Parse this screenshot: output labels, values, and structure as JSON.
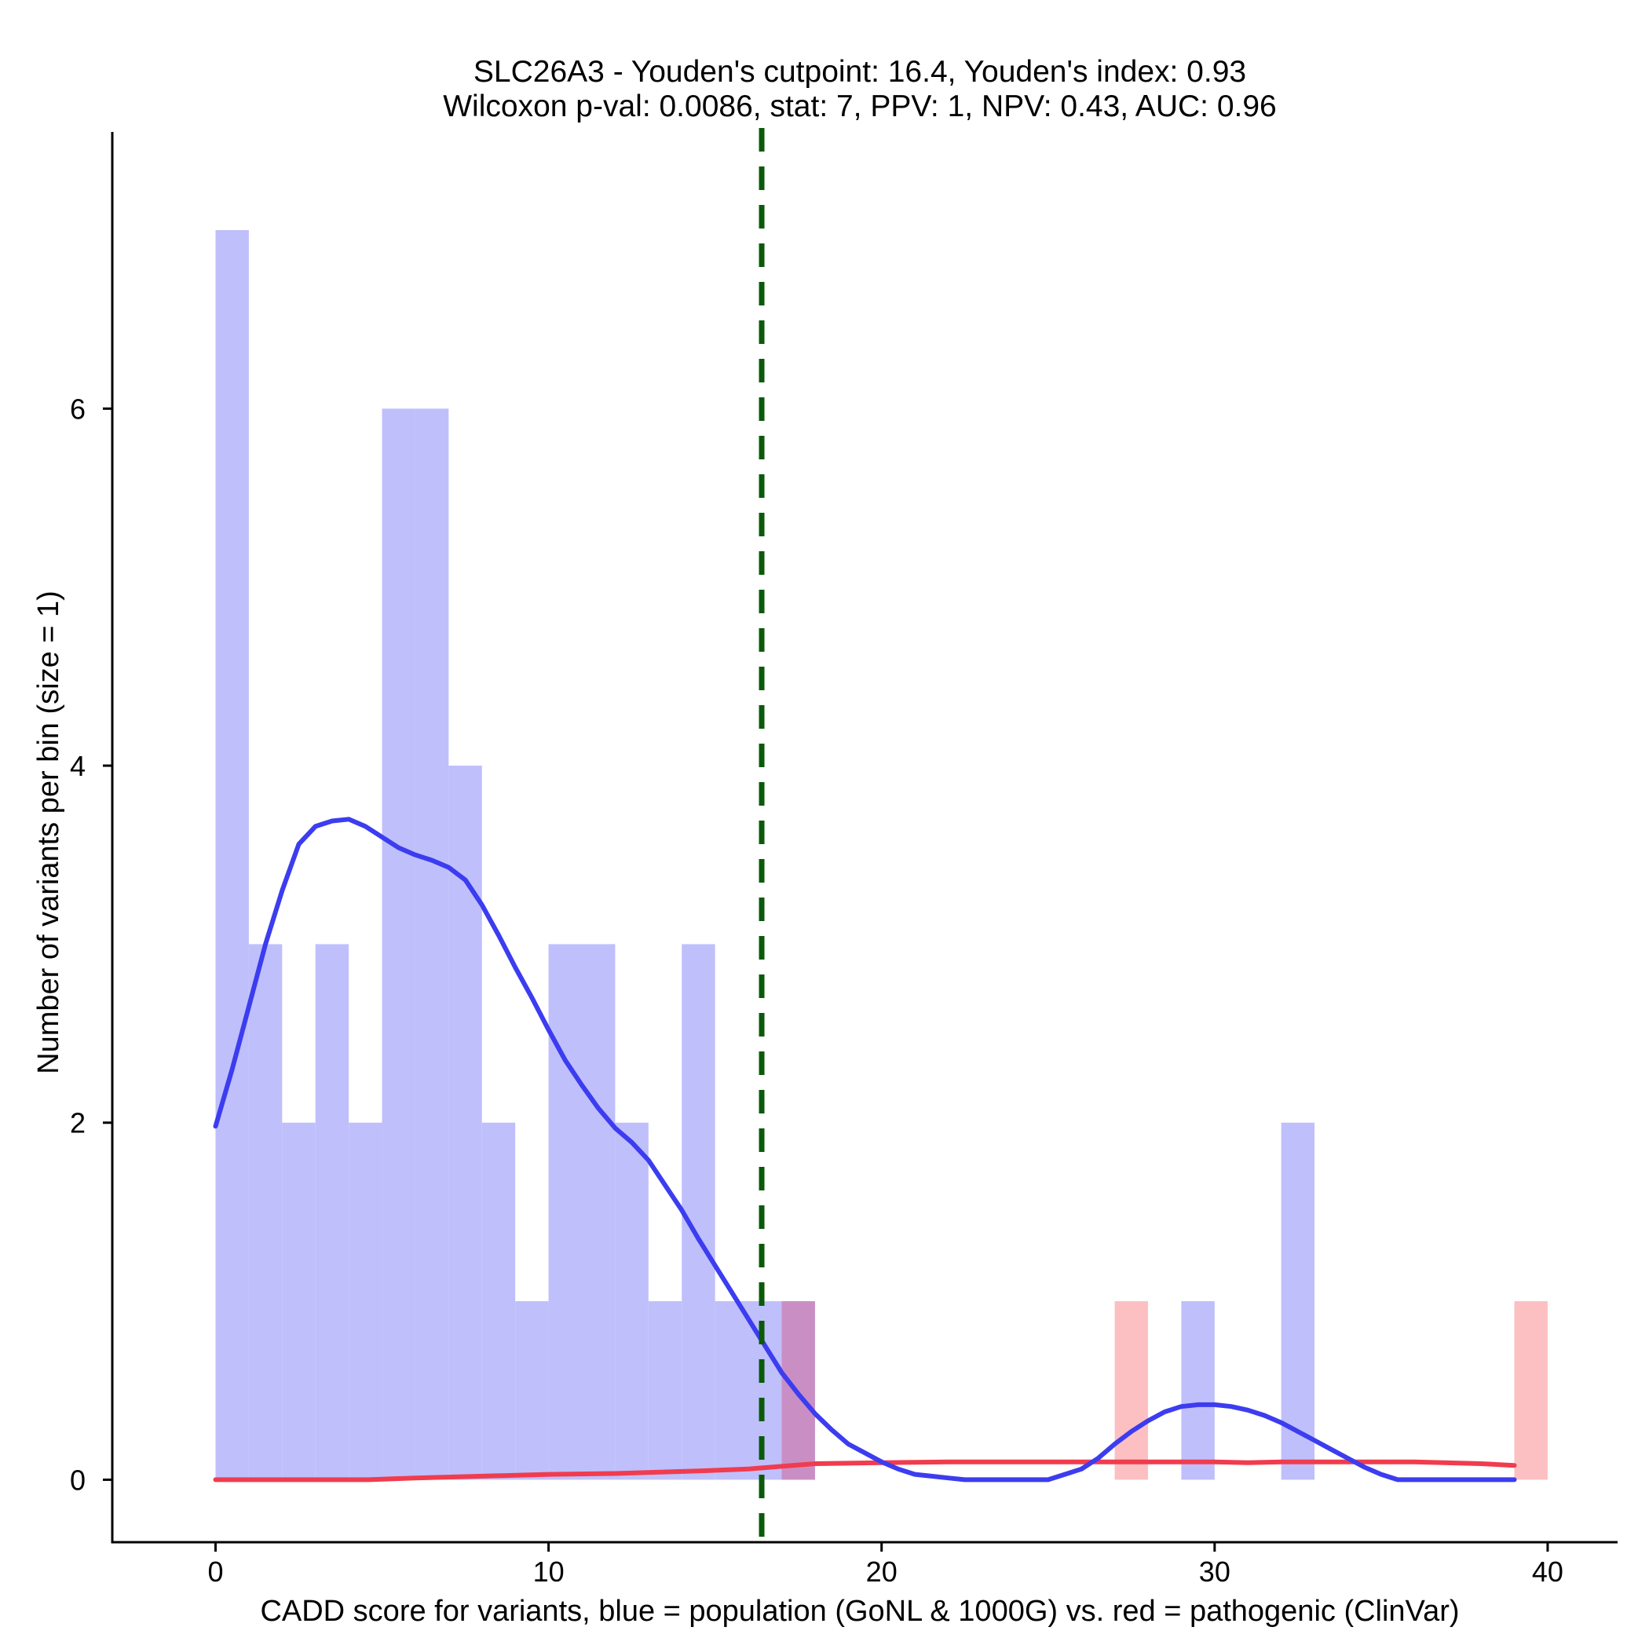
{
  "chart_data": {
    "type": "bar",
    "title_line1": "SLC26A3 - Youden's cutpoint: 16.4, Youden's index: 0.93",
    "title_line2": "Wilcoxon p-val: 0.0086, stat: 7, PPV: 1, NPV: 0.43, AUC: 0.96",
    "xlabel": "CADD score for variants, blue = population (GoNL & 1000G) vs. red = pathogenic (ClinVar)",
    "ylabel": "Number of variants per bin (size = 1)",
    "xlim": [
      -3.1,
      42.1
    ],
    "ylim": [
      -0.35,
      7.55
    ],
    "x_ticks": [
      0,
      10,
      20,
      30,
      40
    ],
    "y_ticks": [
      0,
      2,
      4,
      6
    ],
    "cutpoint": 16.4,
    "colors": {
      "population_bar": "#bfbffc",
      "pathogenic_bar": "#fcc0c2",
      "overlap_bar": "#c98fc4",
      "population_line": "#3c3cf0",
      "pathogenic_line": "#f03c4e",
      "cutpoint_line": "#0a5a0a"
    },
    "series": [
      {
        "name": "population (GoNL & 1000G)",
        "bin_width": 1,
        "bins": [
          {
            "start": 0,
            "count": 7
          },
          {
            "start": 1,
            "count": 3
          },
          {
            "start": 2,
            "count": 2
          },
          {
            "start": 3,
            "count": 3
          },
          {
            "start": 4,
            "count": 2
          },
          {
            "start": 5,
            "count": 6
          },
          {
            "start": 6,
            "count": 6
          },
          {
            "start": 7,
            "count": 4
          },
          {
            "start": 8,
            "count": 2
          },
          {
            "start": 9,
            "count": 1
          },
          {
            "start": 10,
            "count": 3
          },
          {
            "start": 11,
            "count": 3
          },
          {
            "start": 12,
            "count": 2
          },
          {
            "start": 13,
            "count": 1
          },
          {
            "start": 14,
            "count": 3
          },
          {
            "start": 15,
            "count": 1
          },
          {
            "start": 16,
            "count": 1
          },
          {
            "start": 17,
            "count": 1
          },
          {
            "start": 29,
            "count": 1
          },
          {
            "start": 32,
            "count": 2
          }
        ],
        "density_curve": {
          "x": [
            0,
            0.5,
            1,
            1.5,
            2,
            2.5,
            3,
            3.5,
            4,
            4.5,
            5,
            5.5,
            6,
            6.5,
            7,
            7.5,
            8,
            8.5,
            9,
            9.5,
            10,
            10.5,
            11,
            11.5,
            12,
            12.5,
            13,
            13.5,
            14,
            14.5,
            15,
            15.5,
            16,
            16.5,
            17,
            17.5,
            18,
            18.5,
            19,
            19.5,
            20,
            20.5,
            21,
            21.5,
            22,
            22.5,
            23,
            24,
            25,
            25.5,
            26,
            26.5,
            27,
            27.5,
            28,
            28.5,
            29,
            29.5,
            30,
            30.5,
            31,
            31.5,
            32,
            32.5,
            33,
            33.5,
            34,
            34.5,
            35,
            35.5,
            36,
            36.5,
            37,
            37.5,
            38,
            39
          ],
          "y": [
            1.98,
            2.3,
            2.65,
            3.0,
            3.3,
            3.56,
            3.66,
            3.69,
            3.7,
            3.66,
            3.6,
            3.54,
            3.5,
            3.47,
            3.43,
            3.36,
            3.22,
            3.05,
            2.87,
            2.7,
            2.52,
            2.35,
            2.21,
            2.08,
            1.97,
            1.89,
            1.79,
            1.65,
            1.51,
            1.35,
            1.2,
            1.05,
            0.9,
            0.75,
            0.6,
            0.48,
            0.37,
            0.28,
            0.2,
            0.15,
            0.1,
            0.06,
            0.03,
            0.02,
            0.01,
            0.0,
            0.0,
            0.0,
            0.0,
            0.03,
            0.06,
            0.12,
            0.2,
            0.27,
            0.33,
            0.38,
            0.41,
            0.42,
            0.42,
            0.41,
            0.39,
            0.36,
            0.32,
            0.27,
            0.22,
            0.17,
            0.12,
            0.07,
            0.03,
            0.0,
            0.0,
            0.0,
            0.0,
            0.0,
            0.0,
            0.0
          ]
        }
      },
      {
        "name": "pathogenic (ClinVar)",
        "bin_width": 1,
        "bins": [
          {
            "start": 17,
            "count": 1
          },
          {
            "start": 27,
            "count": 1
          },
          {
            "start": 39,
            "count": 1
          }
        ],
        "density_curve": {
          "x": [
            0,
            2,
            4.6,
            6,
            8,
            10,
            12,
            14.6,
            16,
            18,
            20,
            22,
            24,
            26,
            28,
            30,
            31,
            32,
            34,
            36,
            38,
            39
          ],
          "y": [
            0.0,
            0.0,
            0.0,
            0.01,
            0.02,
            0.03,
            0.035,
            0.05,
            0.06,
            0.09,
            0.095,
            0.1,
            0.1,
            0.1,
            0.1,
            0.1,
            0.095,
            0.1,
            0.1,
            0.1,
            0.09,
            0.08
          ]
        }
      }
    ]
  }
}
